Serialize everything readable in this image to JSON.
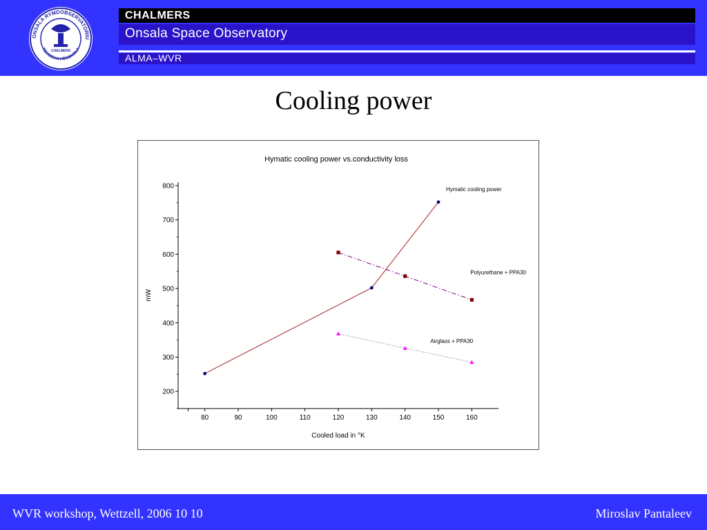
{
  "header": {
    "logo_text": [
      "ONSALA RYMDOBSERVATORIUM",
      "CHALMERS",
      "TEKNISKA HÖGSKOLA"
    ],
    "banner_line1": "CHALMERS",
    "banner_line2": "Onsala Space Observatory",
    "banner_line3": "ALMA–WVR",
    "background_color": "#3333ff"
  },
  "slide": {
    "title": "Cooling power"
  },
  "chart_data": {
    "type": "line",
    "title": "Hymatic cooling power vs.conductivity loss",
    "xlabel": "Cooled load in °K",
    "ylabel": "mW",
    "xlim": [
      72,
      168
    ],
    "ylim": [
      150,
      810
    ],
    "x_ticks": [
      80,
      90,
      100,
      110,
      120,
      130,
      140,
      150,
      160
    ],
    "y_ticks": [
      200,
      300,
      400,
      500,
      600,
      700,
      800
    ],
    "grid": false,
    "series": [
      {
        "name": "Hymatic cooling power",
        "x": [
          80,
          130,
          150
        ],
        "y": [
          252,
          502,
          752
        ],
        "color": "#aa2020",
        "marker": "circle",
        "marker_color": "#000080",
        "dash": "solid"
      },
      {
        "name": "Polyurethane + PPA30",
        "x": [
          120,
          140,
          160
        ],
        "y": [
          605,
          536,
          467
        ],
        "color": "#800080",
        "marker": "square",
        "marker_color": "#800000",
        "dash": "dashdot"
      },
      {
        "name": "Airglass + PPA30",
        "x": [
          120,
          140,
          160
        ],
        "y": [
          368,
          326,
          285
        ],
        "color": "#555555",
        "marker": "triangle",
        "marker_color": "#ff00ff",
        "dash": "dotted"
      }
    ]
  },
  "footer": {
    "left": "WVR workshop, Wettzell, 2006 10 10",
    "right": "Miroslav Pantaleev"
  }
}
